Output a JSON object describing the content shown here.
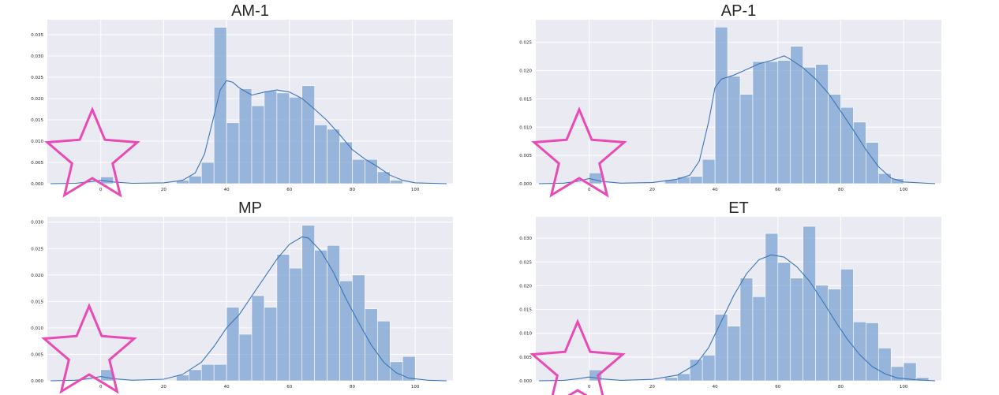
{
  "chart_data": [
    {
      "type": "bar",
      "title": "AM-1",
      "xlim": [
        -17,
        112
      ],
      "ylim": [
        0,
        0.0385
      ],
      "xticks": [
        "0",
        "20",
        "40",
        "60",
        "80",
        "100"
      ],
      "xtick_values": [
        0,
        20,
        40,
        60,
        80,
        100
      ],
      "yticks": [
        "0.000",
        "0.005",
        "0.010",
        "0.015",
        "0.020",
        "0.025",
        "0.030",
        "0.035"
      ],
      "ytick_values": [
        0,
        0.005,
        0.01,
        0.015,
        0.02,
        0.025,
        0.03,
        0.035
      ],
      "bin_width": 4,
      "bars": [
        {
          "x": 0,
          "h": 0.0016
        },
        {
          "x": 24,
          "h": 0.0008
        },
        {
          "x": 28,
          "h": 0.0018
        },
        {
          "x": 32,
          "h": 0.005
        },
        {
          "x": 36,
          "h": 0.0367
        },
        {
          "x": 40,
          "h": 0.0143
        },
        {
          "x": 44,
          "h": 0.0223
        },
        {
          "x": 48,
          "h": 0.0183
        },
        {
          "x": 52,
          "h": 0.0218
        },
        {
          "x": 56,
          "h": 0.0213
        },
        {
          "x": 60,
          "h": 0.0203
        },
        {
          "x": 64,
          "h": 0.023
        },
        {
          "x": 68,
          "h": 0.0138
        },
        {
          "x": 72,
          "h": 0.0128
        },
        {
          "x": 76,
          "h": 0.0098
        },
        {
          "x": 80,
          "h": 0.0057
        },
        {
          "x": 84,
          "h": 0.0057
        },
        {
          "x": 88,
          "h": 0.0028
        },
        {
          "x": 92,
          "h": 0.0008
        }
      ],
      "kde": [
        [
          -16,
          0
        ],
        [
          -8,
          0.0001
        ],
        [
          -4,
          0.0004
        ],
        [
          0,
          0.0008
        ],
        [
          4,
          0.0004
        ],
        [
          10,
          0.0001
        ],
        [
          20,
          0.0002
        ],
        [
          26,
          0.0008
        ],
        [
          30,
          0.0025
        ],
        [
          33,
          0.007
        ],
        [
          36,
          0.016
        ],
        [
          38,
          0.022
        ],
        [
          40,
          0.0242
        ],
        [
          42,
          0.0238
        ],
        [
          44,
          0.0225
        ],
        [
          48,
          0.0208
        ],
        [
          52,
          0.0215
        ],
        [
          56,
          0.022
        ],
        [
          60,
          0.0215
        ],
        [
          64,
          0.02
        ],
        [
          68,
          0.0175
        ],
        [
          72,
          0.0148
        ],
        [
          76,
          0.0115
        ],
        [
          80,
          0.008
        ],
        [
          84,
          0.0058
        ],
        [
          88,
          0.004
        ],
        [
          92,
          0.002
        ],
        [
          96,
          0.0008
        ],
        [
          100,
          0.0002
        ],
        [
          110,
          0
        ]
      ]
    },
    {
      "type": "bar",
      "title": "AP-1",
      "xlim": [
        -17,
        112
      ],
      "ylim": [
        0,
        0.029
      ],
      "xticks": [
        "0",
        "20",
        "40",
        "60",
        "80",
        "100"
      ],
      "xtick_values": [
        0,
        20,
        40,
        60,
        80,
        100
      ],
      "yticks": [
        "0.000",
        "0.005",
        "0.010",
        "0.015",
        "0.020",
        "0.025"
      ],
      "ytick_values": [
        0,
        0.005,
        0.01,
        0.015,
        0.02,
        0.025
      ],
      "bin_width": 4,
      "bars": [
        {
          "x": 0,
          "h": 0.0019
        },
        {
          "x": 24,
          "h": 0.0007
        },
        {
          "x": 28,
          "h": 0.0012
        },
        {
          "x": 32,
          "h": 0.0013
        },
        {
          "x": 36,
          "h": 0.0043
        },
        {
          "x": 40,
          "h": 0.0277
        },
        {
          "x": 44,
          "h": 0.019
        },
        {
          "x": 48,
          "h": 0.0158
        },
        {
          "x": 52,
          "h": 0.0216
        },
        {
          "x": 56,
          "h": 0.0216
        },
        {
          "x": 60,
          "h": 0.0218
        },
        {
          "x": 64,
          "h": 0.0243
        },
        {
          "x": 68,
          "h": 0.0206
        },
        {
          "x": 72,
          "h": 0.0211
        },
        {
          "x": 76,
          "h": 0.0158
        },
        {
          "x": 80,
          "h": 0.0135
        },
        {
          "x": 84,
          "h": 0.0109
        },
        {
          "x": 88,
          "h": 0.0073
        },
        {
          "x": 92,
          "h": 0.0018
        },
        {
          "x": 96,
          "h": 0.0009
        }
      ],
      "kde": [
        [
          -16,
          0
        ],
        [
          -8,
          0.0001
        ],
        [
          -4,
          0.0004
        ],
        [
          0,
          0.0009
        ],
        [
          4,
          0.0004
        ],
        [
          10,
          0.0001
        ],
        [
          20,
          0.0002
        ],
        [
          28,
          0.0008
        ],
        [
          32,
          0.0015
        ],
        [
          35,
          0.004
        ],
        [
          38,
          0.011
        ],
        [
          40,
          0.017
        ],
        [
          42,
          0.0185
        ],
        [
          46,
          0.0192
        ],
        [
          50,
          0.0202
        ],
        [
          54,
          0.0212
        ],
        [
          58,
          0.0218
        ],
        [
          62,
          0.0226
        ],
        [
          64,
          0.022
        ],
        [
          68,
          0.0205
        ],
        [
          72,
          0.0185
        ],
        [
          76,
          0.016
        ],
        [
          80,
          0.0128
        ],
        [
          84,
          0.0095
        ],
        [
          88,
          0.006
        ],
        [
          92,
          0.003
        ],
        [
          96,
          0.001
        ],
        [
          100,
          0.0003
        ],
        [
          110,
          0
        ]
      ]
    },
    {
      "type": "bar",
      "title": "MP",
      "xlim": [
        -17,
        112
      ],
      "ylim": [
        0,
        0.031
      ],
      "xticks": [
        "0",
        "20",
        "40",
        "60",
        "80",
        "100"
      ],
      "xtick_values": [
        0,
        20,
        40,
        60,
        80,
        100
      ],
      "yticks": [
        "0.000",
        "0.005",
        "0.010",
        "0.015",
        "0.020",
        "0.025",
        "0.030"
      ],
      "ytick_values": [
        0,
        0.005,
        0.01,
        0.015,
        0.02,
        0.025,
        0.03
      ],
      "bin_width": 4,
      "bars": [
        {
          "x": 0,
          "h": 0.0021
        },
        {
          "x": 24,
          "h": 0.0011
        },
        {
          "x": 28,
          "h": 0.0021
        },
        {
          "x": 32,
          "h": 0.0031
        },
        {
          "x": 36,
          "h": 0.0031
        },
        {
          "x": 40,
          "h": 0.0139
        },
        {
          "x": 44,
          "h": 0.0088
        },
        {
          "x": 48,
          "h": 0.0161
        },
        {
          "x": 52,
          "h": 0.0139
        },
        {
          "x": 56,
          "h": 0.0239
        },
        {
          "x": 60,
          "h": 0.0213
        },
        {
          "x": 64,
          "h": 0.0294
        },
        {
          "x": 68,
          "h": 0.0247
        },
        {
          "x": 72,
          "h": 0.0256
        },
        {
          "x": 76,
          "h": 0.0189
        },
        {
          "x": 80,
          "h": 0.02
        },
        {
          "x": 84,
          "h": 0.0136
        },
        {
          "x": 88,
          "h": 0.0113
        },
        {
          "x": 92,
          "h": 0.0036
        },
        {
          "x": 96,
          "h": 0.0046
        }
      ],
      "kde": [
        [
          -16,
          0
        ],
        [
          -8,
          0.0001
        ],
        [
          -4,
          0.0004
        ],
        [
          0,
          0.0008
        ],
        [
          4,
          0.0004
        ],
        [
          10,
          0.0001
        ],
        [
          20,
          0.0003
        ],
        [
          26,
          0.0012
        ],
        [
          32,
          0.0035
        ],
        [
          36,
          0.0065
        ],
        [
          40,
          0.01
        ],
        [
          44,
          0.0125
        ],
        [
          48,
          0.016
        ],
        [
          52,
          0.0195
        ],
        [
          56,
          0.023
        ],
        [
          60,
          0.0258
        ],
        [
          64,
          0.0272
        ],
        [
          66,
          0.027
        ],
        [
          70,
          0.0245
        ],
        [
          74,
          0.0205
        ],
        [
          78,
          0.0155
        ],
        [
          82,
          0.011
        ],
        [
          86,
          0.0068
        ],
        [
          90,
          0.0035
        ],
        [
          94,
          0.0015
        ],
        [
          98,
          0.0005
        ],
        [
          104,
          0.0001
        ],
        [
          110,
          0
        ]
      ]
    },
    {
      "type": "bar",
      "title": "ET",
      "xlim": [
        -17,
        112
      ],
      "ylim": [
        0,
        0.0345
      ],
      "xticks": [
        "0",
        "20",
        "40",
        "60",
        "80",
        "100"
      ],
      "xtick_values": [
        0,
        20,
        40,
        60,
        80,
        100
      ],
      "yticks": [
        "0.000",
        "0.005",
        "0.010",
        "0.015",
        "0.020",
        "0.025",
        "0.030"
      ],
      "ytick_values": [
        0,
        0.005,
        0.01,
        0.015,
        0.02,
        0.025,
        0.03
      ],
      "bin_width": 4,
      "bars": [
        {
          "x": 0,
          "h": 0.0023
        },
        {
          "x": 24,
          "h": 0.0007
        },
        {
          "x": 28,
          "h": 0.0015
        },
        {
          "x": 32,
          "h": 0.0045
        },
        {
          "x": 36,
          "h": 0.0054
        },
        {
          "x": 40,
          "h": 0.014
        },
        {
          "x": 44,
          "h": 0.0115
        },
        {
          "x": 48,
          "h": 0.0216
        },
        {
          "x": 52,
          "h": 0.0177
        },
        {
          "x": 56,
          "h": 0.031
        },
        {
          "x": 60,
          "h": 0.0249
        },
        {
          "x": 64,
          "h": 0.0216
        },
        {
          "x": 68,
          "h": 0.0325
        },
        {
          "x": 72,
          "h": 0.0201
        },
        {
          "x": 76,
          "h": 0.0193
        },
        {
          "x": 80,
          "h": 0.0235
        },
        {
          "x": 84,
          "h": 0.0124
        },
        {
          "x": 88,
          "h": 0.0122
        },
        {
          "x": 92,
          "h": 0.0069
        },
        {
          "x": 96,
          "h": 0.003
        },
        {
          "x": 100,
          "h": 0.0038
        },
        {
          "x": 104,
          "h": 0.0007
        }
      ],
      "kde": [
        [
          -16,
          0
        ],
        [
          -8,
          0.0001
        ],
        [
          -4,
          0.0004
        ],
        [
          0,
          0.0008
        ],
        [
          4,
          0.0004
        ],
        [
          10,
          0.0001
        ],
        [
          20,
          0.0003
        ],
        [
          28,
          0.0012
        ],
        [
          34,
          0.0035
        ],
        [
          38,
          0.007
        ],
        [
          42,
          0.0125
        ],
        [
          46,
          0.018
        ],
        [
          50,
          0.0225
        ],
        [
          54,
          0.0255
        ],
        [
          58,
          0.0265
        ],
        [
          62,
          0.026
        ],
        [
          66,
          0.024
        ],
        [
          70,
          0.021
        ],
        [
          74,
          0.017
        ],
        [
          78,
          0.0128
        ],
        [
          82,
          0.0088
        ],
        [
          86,
          0.0055
        ],
        [
          90,
          0.003
        ],
        [
          94,
          0.0015
        ],
        [
          98,
          0.0006
        ],
        [
          104,
          0.0002
        ],
        [
          110,
          0
        ]
      ]
    }
  ],
  "colors": {
    "background": "#eaeaf2",
    "grid": "#ffffff",
    "bar": "#7ba3d1",
    "kde": "#3a75b8",
    "star": "#e84bb4",
    "text": "#262626"
  }
}
